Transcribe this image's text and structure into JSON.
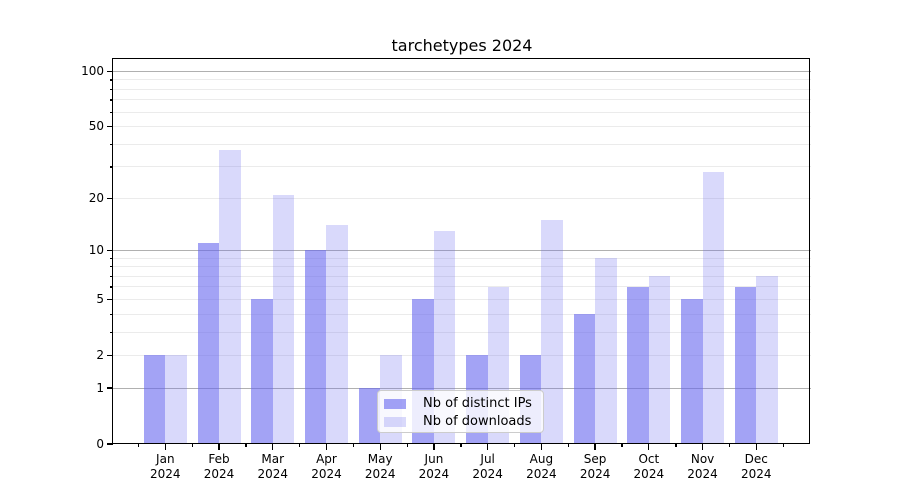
{
  "chart_data": {
    "type": "bar",
    "title": "tarchetypes 2024",
    "categories": [
      "Jan",
      "Feb",
      "Mar",
      "Apr",
      "May",
      "Jun",
      "Jul",
      "Aug",
      "Sep",
      "Oct",
      "Nov",
      "Dec"
    ],
    "x_year_label": "2024",
    "series": [
      {
        "name": "Nb of distinct IPs",
        "color": "#6666ee",
        "alpha": 0.6,
        "values": [
          2,
          11,
          5,
          10,
          1,
          5,
          2,
          2,
          4,
          6,
          5,
          6
        ]
      },
      {
        "name": "Nb of downloads",
        "color": "#6666ee",
        "alpha": 0.25,
        "values": [
          2,
          37,
          21,
          14,
          2,
          13,
          6,
          15,
          9,
          7,
          28,
          7
        ]
      }
    ],
    "y_scale": "log1p",
    "y_axis": {
      "tick_values": [
        0,
        1,
        2,
        5,
        10,
        20,
        50,
        100
      ],
      "minor_tick_values": [
        3,
        4,
        6,
        7,
        8,
        9,
        30,
        40,
        60,
        70,
        80,
        90
      ],
      "major_grid_values": [
        1,
        10,
        100
      ],
      "minor_grid_values": [
        2,
        3,
        4,
        5,
        6,
        7,
        8,
        9,
        20,
        30,
        40,
        50,
        60,
        70,
        80,
        90
      ],
      "ylim": [
        0,
        117
      ]
    },
    "legend": {
      "position": "lower center",
      "entries": [
        "Nb of distinct IPs",
        "Nb of downloads"
      ]
    },
    "colors": {
      "bar_base": "#6666ee",
      "major_grid": "#b0b0b0",
      "minor_grid": "#ebebeb",
      "spine": "#000000",
      "text": "#000000",
      "legend_border": "#cccccc"
    }
  }
}
